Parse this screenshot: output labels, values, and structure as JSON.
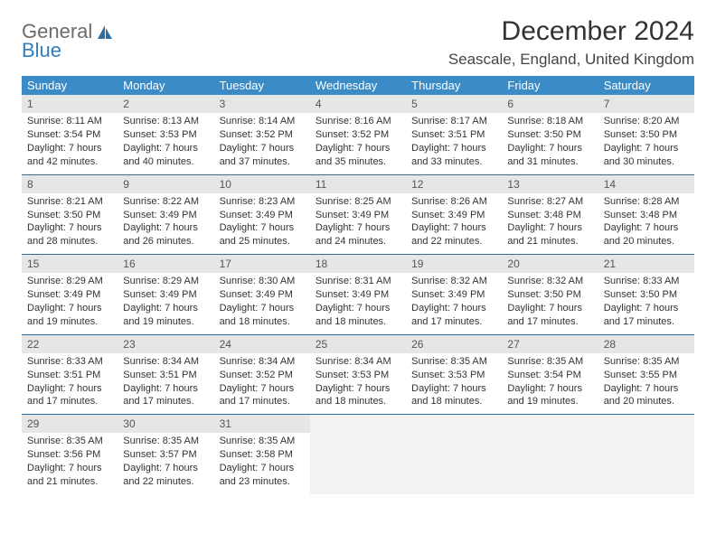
{
  "logo": {
    "line1": "General",
    "line2": "Blue"
  },
  "title": "December 2024",
  "location": "Seascale, England, United Kingdom",
  "colors": {
    "header_bg": "#3b8bc6",
    "header_text": "#ffffff",
    "daynum_bg": "#e6e6e6",
    "rule": "#2d6ea3",
    "logo_gray": "#6b6b6b",
    "logo_blue": "#2f7fbf"
  },
  "columns": [
    "Sunday",
    "Monday",
    "Tuesday",
    "Wednesday",
    "Thursday",
    "Friday",
    "Saturday"
  ],
  "weeks": [
    [
      {
        "day": "1",
        "sunrise": "Sunrise: 8:11 AM",
        "sunset": "Sunset: 3:54 PM",
        "daylight": "Daylight: 7 hours and 42 minutes."
      },
      {
        "day": "2",
        "sunrise": "Sunrise: 8:13 AM",
        "sunset": "Sunset: 3:53 PM",
        "daylight": "Daylight: 7 hours and 40 minutes."
      },
      {
        "day": "3",
        "sunrise": "Sunrise: 8:14 AM",
        "sunset": "Sunset: 3:52 PM",
        "daylight": "Daylight: 7 hours and 37 minutes."
      },
      {
        "day": "4",
        "sunrise": "Sunrise: 8:16 AM",
        "sunset": "Sunset: 3:52 PM",
        "daylight": "Daylight: 7 hours and 35 minutes."
      },
      {
        "day": "5",
        "sunrise": "Sunrise: 8:17 AM",
        "sunset": "Sunset: 3:51 PM",
        "daylight": "Daylight: 7 hours and 33 minutes."
      },
      {
        "day": "6",
        "sunrise": "Sunrise: 8:18 AM",
        "sunset": "Sunset: 3:50 PM",
        "daylight": "Daylight: 7 hours and 31 minutes."
      },
      {
        "day": "7",
        "sunrise": "Sunrise: 8:20 AM",
        "sunset": "Sunset: 3:50 PM",
        "daylight": "Daylight: 7 hours and 30 minutes."
      }
    ],
    [
      {
        "day": "8",
        "sunrise": "Sunrise: 8:21 AM",
        "sunset": "Sunset: 3:50 PM",
        "daylight": "Daylight: 7 hours and 28 minutes."
      },
      {
        "day": "9",
        "sunrise": "Sunrise: 8:22 AM",
        "sunset": "Sunset: 3:49 PM",
        "daylight": "Daylight: 7 hours and 26 minutes."
      },
      {
        "day": "10",
        "sunrise": "Sunrise: 8:23 AM",
        "sunset": "Sunset: 3:49 PM",
        "daylight": "Daylight: 7 hours and 25 minutes."
      },
      {
        "day": "11",
        "sunrise": "Sunrise: 8:25 AM",
        "sunset": "Sunset: 3:49 PM",
        "daylight": "Daylight: 7 hours and 24 minutes."
      },
      {
        "day": "12",
        "sunrise": "Sunrise: 8:26 AM",
        "sunset": "Sunset: 3:49 PM",
        "daylight": "Daylight: 7 hours and 22 minutes."
      },
      {
        "day": "13",
        "sunrise": "Sunrise: 8:27 AM",
        "sunset": "Sunset: 3:48 PM",
        "daylight": "Daylight: 7 hours and 21 minutes."
      },
      {
        "day": "14",
        "sunrise": "Sunrise: 8:28 AM",
        "sunset": "Sunset: 3:48 PM",
        "daylight": "Daylight: 7 hours and 20 minutes."
      }
    ],
    [
      {
        "day": "15",
        "sunrise": "Sunrise: 8:29 AM",
        "sunset": "Sunset: 3:49 PM",
        "daylight": "Daylight: 7 hours and 19 minutes."
      },
      {
        "day": "16",
        "sunrise": "Sunrise: 8:29 AM",
        "sunset": "Sunset: 3:49 PM",
        "daylight": "Daylight: 7 hours and 19 minutes."
      },
      {
        "day": "17",
        "sunrise": "Sunrise: 8:30 AM",
        "sunset": "Sunset: 3:49 PM",
        "daylight": "Daylight: 7 hours and 18 minutes."
      },
      {
        "day": "18",
        "sunrise": "Sunrise: 8:31 AM",
        "sunset": "Sunset: 3:49 PM",
        "daylight": "Daylight: 7 hours and 18 minutes."
      },
      {
        "day": "19",
        "sunrise": "Sunrise: 8:32 AM",
        "sunset": "Sunset: 3:49 PM",
        "daylight": "Daylight: 7 hours and 17 minutes."
      },
      {
        "day": "20",
        "sunrise": "Sunrise: 8:32 AM",
        "sunset": "Sunset: 3:50 PM",
        "daylight": "Daylight: 7 hours and 17 minutes."
      },
      {
        "day": "21",
        "sunrise": "Sunrise: 8:33 AM",
        "sunset": "Sunset: 3:50 PM",
        "daylight": "Daylight: 7 hours and 17 minutes."
      }
    ],
    [
      {
        "day": "22",
        "sunrise": "Sunrise: 8:33 AM",
        "sunset": "Sunset: 3:51 PM",
        "daylight": "Daylight: 7 hours and 17 minutes."
      },
      {
        "day": "23",
        "sunrise": "Sunrise: 8:34 AM",
        "sunset": "Sunset: 3:51 PM",
        "daylight": "Daylight: 7 hours and 17 minutes."
      },
      {
        "day": "24",
        "sunrise": "Sunrise: 8:34 AM",
        "sunset": "Sunset: 3:52 PM",
        "daylight": "Daylight: 7 hours and 17 minutes."
      },
      {
        "day": "25",
        "sunrise": "Sunrise: 8:34 AM",
        "sunset": "Sunset: 3:53 PM",
        "daylight": "Daylight: 7 hours and 18 minutes."
      },
      {
        "day": "26",
        "sunrise": "Sunrise: 8:35 AM",
        "sunset": "Sunset: 3:53 PM",
        "daylight": "Daylight: 7 hours and 18 minutes."
      },
      {
        "day": "27",
        "sunrise": "Sunrise: 8:35 AM",
        "sunset": "Sunset: 3:54 PM",
        "daylight": "Daylight: 7 hours and 19 minutes."
      },
      {
        "day": "28",
        "sunrise": "Sunrise: 8:35 AM",
        "sunset": "Sunset: 3:55 PM",
        "daylight": "Daylight: 7 hours and 20 minutes."
      }
    ],
    [
      {
        "day": "29",
        "sunrise": "Sunrise: 8:35 AM",
        "sunset": "Sunset: 3:56 PM",
        "daylight": "Daylight: 7 hours and 21 minutes."
      },
      {
        "day": "30",
        "sunrise": "Sunrise: 8:35 AM",
        "sunset": "Sunset: 3:57 PM",
        "daylight": "Daylight: 7 hours and 22 minutes."
      },
      {
        "day": "31",
        "sunrise": "Sunrise: 8:35 AM",
        "sunset": "Sunset: 3:58 PM",
        "daylight": "Daylight: 7 hours and 23 minutes."
      },
      {
        "day": "",
        "sunrise": "",
        "sunset": "",
        "daylight": ""
      },
      {
        "day": "",
        "sunrise": "",
        "sunset": "",
        "daylight": ""
      },
      {
        "day": "",
        "sunrise": "",
        "sunset": "",
        "daylight": ""
      },
      {
        "day": "",
        "sunrise": "",
        "sunset": "",
        "daylight": ""
      }
    ]
  ]
}
